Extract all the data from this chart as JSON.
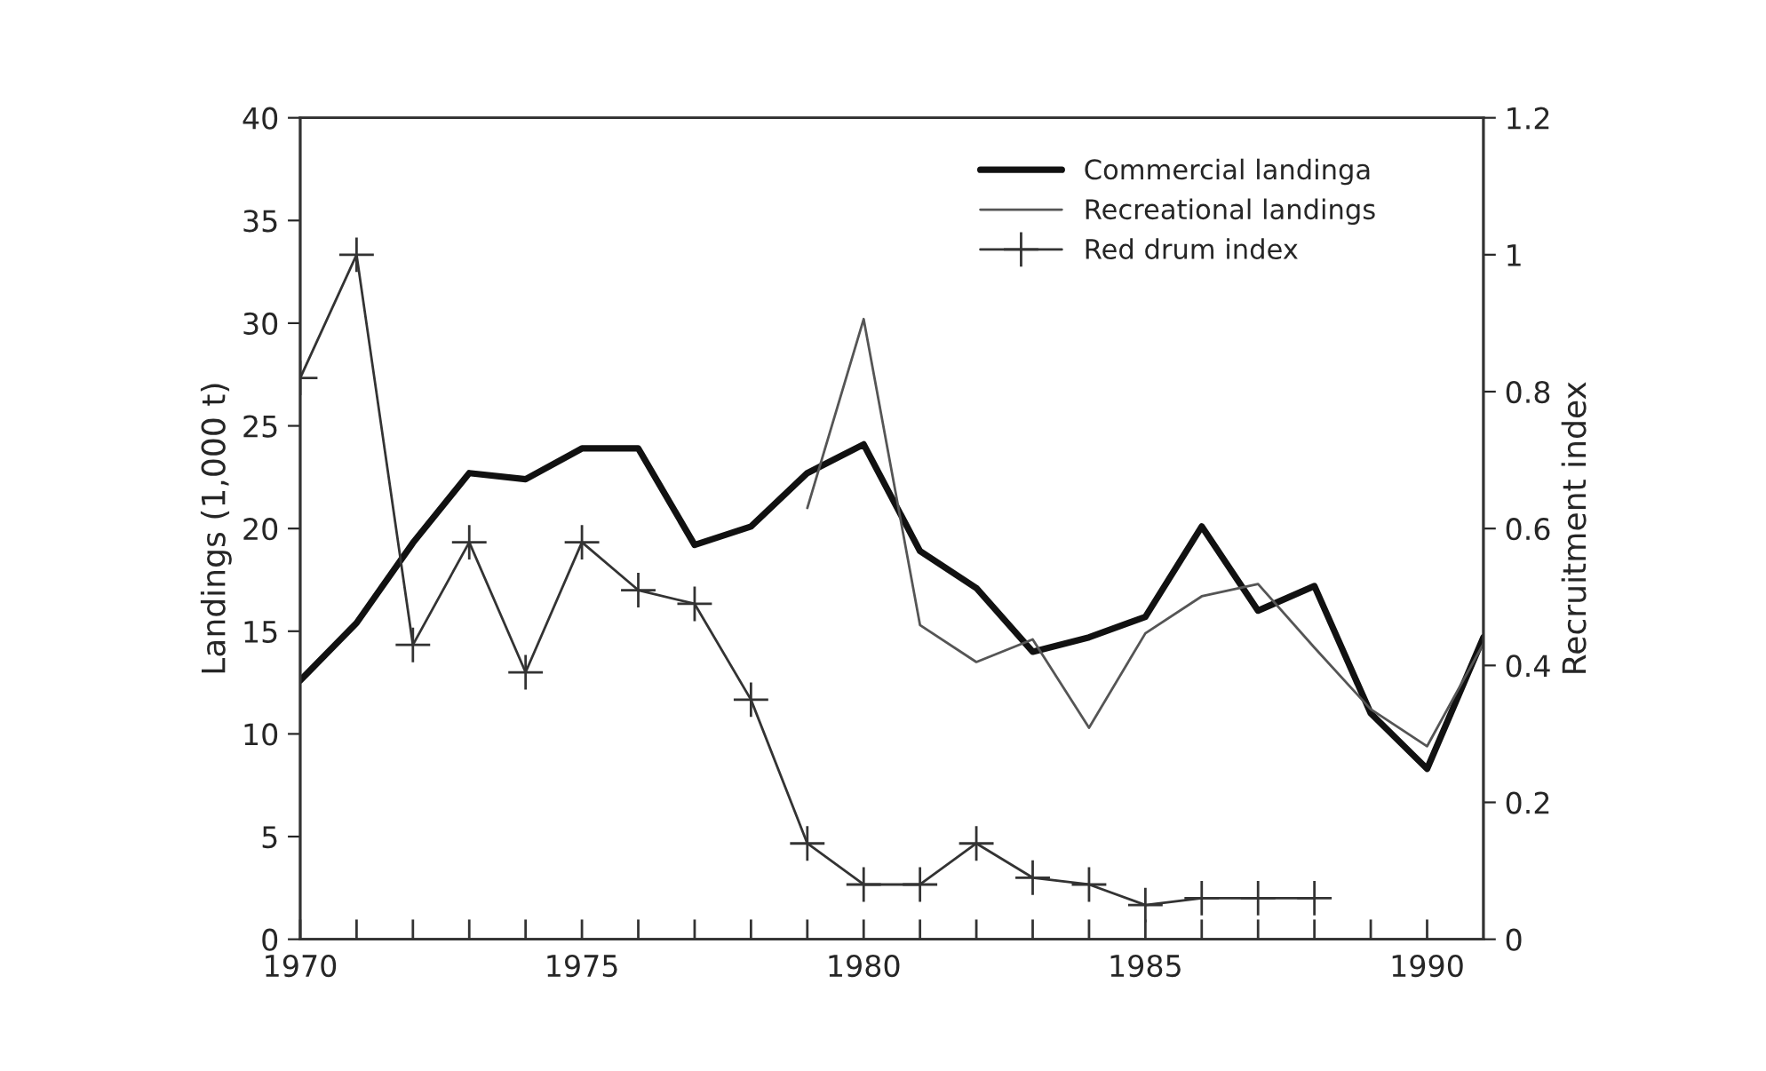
{
  "chart_data": {
    "type": "line",
    "ylabel": "Landings (1,000 t)",
    "y2label": "Recruitment index",
    "x": [
      1970,
      1971,
      1972,
      1973,
      1974,
      1975,
      1976,
      1977,
      1978,
      1979,
      1980,
      1981,
      1982,
      1983,
      1984,
      1985,
      1986,
      1987,
      1988,
      1989,
      1990,
      1991
    ],
    "series": [
      {
        "name": "Commercial landinga",
        "color": "#111111",
        "values": [
          12.6,
          15.4,
          19.3,
          22.7,
          22.4,
          23.9,
          23.9,
          19.2,
          20.1,
          22.7,
          24.1,
          18.9,
          17.1,
          14,
          14.7,
          15.7,
          20.1,
          16,
          17.2,
          11,
          8.3,
          14.7
        ]
      },
      {
        "name": "Recreational landings",
        "color": "#555555",
        "values": [
          null,
          null,
          null,
          null,
          null,
          null,
          null,
          null,
          null,
          21,
          30.2,
          15.3,
          13.5,
          14.6,
          10.3,
          14.9,
          16.7,
          17.3,
          14.2,
          11.2,
          9.4,
          14.4
        ]
      },
      {
        "name": "Red drum index",
        "color": "#333333",
        "axis": "y2",
        "marker": "cross",
        "values": [
          0.82,
          1.0,
          0.43,
          0.58,
          0.39,
          0.58,
          0.51,
          0.49,
          0.35,
          0.14,
          0.08,
          0.08,
          0.14,
          0.09,
          0.08,
          0.05,
          0.06,
          0.06,
          0.06,
          null,
          null,
          null
        ]
      }
    ],
    "xlim": [
      1970,
      1991
    ],
    "xticks": [
      1970,
      {
        "value": 1971,
        "label": null
      },
      {
        "value": 1972,
        "label": null
      },
      {
        "value": 1973,
        "label": null
      },
      {
        "value": 1974,
        "label": null
      },
      1975,
      {
        "value": 1976,
        "label": null
      },
      {
        "value": 1977,
        "label": null
      },
      {
        "value": 1978,
        "label": null
      },
      {
        "value": 1979,
        "label": null
      },
      1980,
      {
        "value": 1981,
        "label": null
      },
      {
        "value": 1982,
        "label": null
      },
      {
        "value": 1983,
        "label": null
      },
      {
        "value": 1984,
        "label": null
      },
      1985,
      {
        "value": 1986,
        "label": null
      },
      {
        "value": 1987,
        "label": null
      },
      {
        "value": 1988,
        "label": null
      },
      {
        "value": 1989,
        "label": null
      },
      1990
    ],
    "ylim": [
      0,
      40
    ],
    "yticks": [
      0,
      5,
      10,
      15,
      20,
      25,
      30,
      35,
      40
    ],
    "y2lim": [
      0,
      1.2
    ],
    "y2ticks": [
      0,
      0.2,
      0.4,
      0.6,
      0.8,
      1,
      1.2
    ],
    "legend": "top right",
    "grid": false
  }
}
